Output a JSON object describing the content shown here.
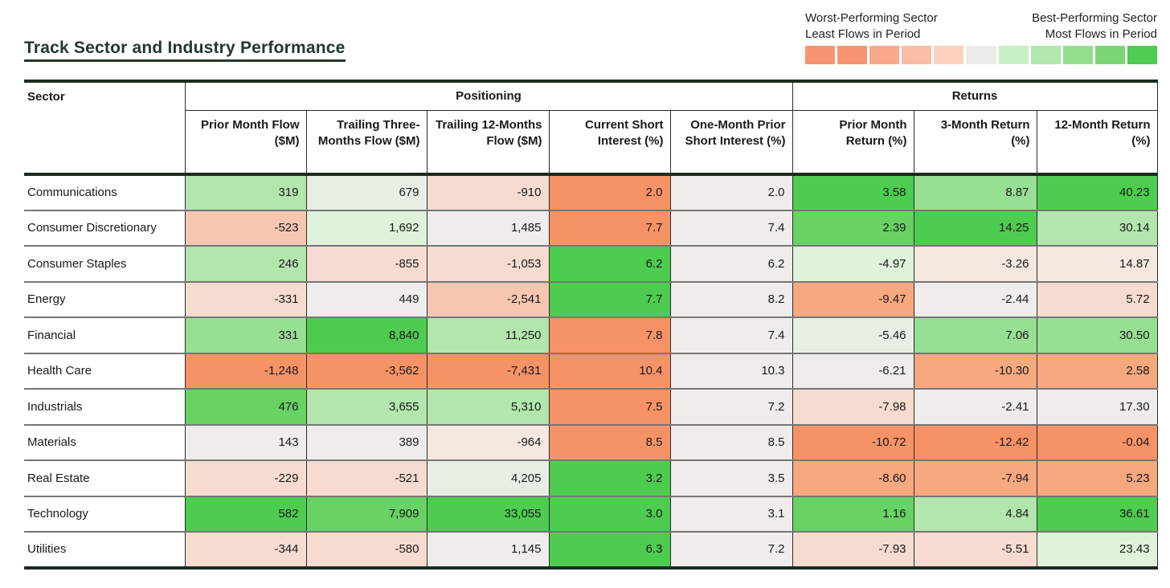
{
  "title": "Track Sector and Industry Performance",
  "legend": {
    "worst_line1": "Worst-Performing Sector",
    "worst_line2": "Least Flows in Period",
    "best_line1": "Best-Performing Sector",
    "best_line2": "Most Flows in Period",
    "swatches": [
      "#f79570",
      "#f79570",
      "#f8a98b",
      "#f9bca5",
      "#fad1bf",
      "#ebebea",
      "#c9efc5",
      "#b2e7ad",
      "#92de8d",
      "#7ad673",
      "#4fcc51"
    ]
  },
  "table": {
    "sector_header": "Sector",
    "groups": [
      {
        "label": "Positioning",
        "span": 5
      },
      {
        "label": "Returns",
        "span": 3
      }
    ],
    "columns": [
      "Prior Month Flow ($M)",
      "Trailing Three-Months Flow ($M)",
      "Trailing 12-Months Flow ($M)",
      "Current Short Interest (%)",
      "One-Month Prior Short Interest (%)",
      "Prior Month Return (%)",
      "3-Month Return (%)",
      "12-Month Return (%)"
    ],
    "palette": {
      "G5": "#4ecc50",
      "G4": "#68d265",
      "G3": "#97df92",
      "G2": "#b2e6ac",
      "G1": "#dff2da",
      "G0": "#e7efe4",
      "N": "#eeedec",
      "R1": "#f6e7e1",
      "R2": "#f5dbd0",
      "R3": "#f6c6b0",
      "R4": "#f6a87f",
      "R5": "#f69366"
    },
    "rows": [
      {
        "sector": "Communications",
        "cells": [
          {
            "v": "319",
            "c": "G2"
          },
          {
            "v": "679",
            "c": "G0"
          },
          {
            "v": "-910",
            "c": "R2"
          },
          {
            "v": "2.0",
            "c": "R5"
          },
          {
            "v": "2.0",
            "c": "N"
          },
          {
            "v": "3.58",
            "c": "G5"
          },
          {
            "v": "8.87",
            "c": "G3"
          },
          {
            "v": "40.23",
            "c": "G5"
          }
        ]
      },
      {
        "sector": "Consumer Discretionary",
        "cells": [
          {
            "v": "-523",
            "c": "R3"
          },
          {
            "v": "1,692",
            "c": "G1"
          },
          {
            "v": "1,485",
            "c": "N"
          },
          {
            "v": "7.7",
            "c": "R5"
          },
          {
            "v": "7.4",
            "c": "N"
          },
          {
            "v": "2.39",
            "c": "G4"
          },
          {
            "v": "14.25",
            "c": "G5"
          },
          {
            "v": "30.14",
            "c": "G2"
          }
        ]
      },
      {
        "sector": "Consumer Staples",
        "cells": [
          {
            "v": "246",
            "c": "G2"
          },
          {
            "v": "-855",
            "c": "R2"
          },
          {
            "v": "-1,053",
            "c": "R2"
          },
          {
            "v": "6.2",
            "c": "G5"
          },
          {
            "v": "6.2",
            "c": "N"
          },
          {
            "v": "-4.97",
            "c": "G1"
          },
          {
            "v": "-3.26",
            "c": "R1"
          },
          {
            "v": "14.87",
            "c": "R1"
          }
        ]
      },
      {
        "sector": "Energy",
        "cells": [
          {
            "v": "-331",
            "c": "R2"
          },
          {
            "v": "449",
            "c": "N"
          },
          {
            "v": "-2,541",
            "c": "R3"
          },
          {
            "v": "7.7",
            "c": "G5"
          },
          {
            "v": "8.2",
            "c": "N"
          },
          {
            "v": "-9.47",
            "c": "R4"
          },
          {
            "v": "-2.44",
            "c": "N"
          },
          {
            "v": "5.72",
            "c": "R2"
          }
        ]
      },
      {
        "sector": "Financial",
        "cells": [
          {
            "v": "331",
            "c": "G3"
          },
          {
            "v": "8,840",
            "c": "G5"
          },
          {
            "v": "11,250",
            "c": "G2"
          },
          {
            "v": "7.8",
            "c": "R5"
          },
          {
            "v": "7.4",
            "c": "N"
          },
          {
            "v": "-5.46",
            "c": "G0"
          },
          {
            "v": "7.06",
            "c": "G3"
          },
          {
            "v": "30.50",
            "c": "G3"
          }
        ]
      },
      {
        "sector": "Health Care",
        "cells": [
          {
            "v": "-1,248",
            "c": "R5"
          },
          {
            "v": "-3,562",
            "c": "R5"
          },
          {
            "v": "-7,431",
            "c": "R5"
          },
          {
            "v": "10.4",
            "c": "R5"
          },
          {
            "v": "10.3",
            "c": "N"
          },
          {
            "v": "-6.21",
            "c": "N"
          },
          {
            "v": "-10.30",
            "c": "R4"
          },
          {
            "v": "2.58",
            "c": "R4"
          }
        ]
      },
      {
        "sector": "Industrials",
        "cells": [
          {
            "v": "476",
            "c": "G4"
          },
          {
            "v": "3,655",
            "c": "G2"
          },
          {
            "v": "5,310",
            "c": "G2"
          },
          {
            "v": "7.5",
            "c": "R5"
          },
          {
            "v": "7.2",
            "c": "N"
          },
          {
            "v": "-7.98",
            "c": "R2"
          },
          {
            "v": "-2.41",
            "c": "N"
          },
          {
            "v": "17.30",
            "c": "N"
          }
        ]
      },
      {
        "sector": "Materials",
        "cells": [
          {
            "v": "143",
            "c": "N"
          },
          {
            "v": "389",
            "c": "N"
          },
          {
            "v": "-964",
            "c": "R1"
          },
          {
            "v": "8.5",
            "c": "R5"
          },
          {
            "v": "8.5",
            "c": "N"
          },
          {
            "v": "-10.72",
            "c": "R5"
          },
          {
            "v": "-12.42",
            "c": "R5"
          },
          {
            "v": "-0.04",
            "c": "R5"
          }
        ]
      },
      {
        "sector": "Real Estate",
        "cells": [
          {
            "v": "-229",
            "c": "R2"
          },
          {
            "v": "-521",
            "c": "R2"
          },
          {
            "v": "4,205",
            "c": "G0"
          },
          {
            "v": "3.2",
            "c": "G5"
          },
          {
            "v": "3.5",
            "c": "N"
          },
          {
            "v": "-8.60",
            "c": "R4"
          },
          {
            "v": "-7.94",
            "c": "R4"
          },
          {
            "v": "5.23",
            "c": "R4"
          }
        ]
      },
      {
        "sector": "Technology",
        "cells": [
          {
            "v": "582",
            "c": "G5"
          },
          {
            "v": "7,909",
            "c": "G4"
          },
          {
            "v": "33,055",
            "c": "G5"
          },
          {
            "v": "3.0",
            "c": "G5"
          },
          {
            "v": "3.1",
            "c": "N"
          },
          {
            "v": "1.16",
            "c": "G4"
          },
          {
            "v": "4.84",
            "c": "G2"
          },
          {
            "v": "36.61",
            "c": "G5"
          }
        ]
      },
      {
        "sector": "Utilities",
        "cells": [
          {
            "v": "-344",
            "c": "R2"
          },
          {
            "v": "-580",
            "c": "R2"
          },
          {
            "v": "1,145",
            "c": "N"
          },
          {
            "v": "6.3",
            "c": "G5"
          },
          {
            "v": "7.2",
            "c": "N"
          },
          {
            "v": "-7.93",
            "c": "R2"
          },
          {
            "v": "-5.51",
            "c": "R2"
          },
          {
            "v": "23.43",
            "c": "G1"
          }
        ]
      }
    ]
  },
  "chart_data": {
    "type": "heatmap",
    "title": "Track Sector and Industry Performance",
    "column_groups": [
      {
        "label": "Positioning",
        "columns": [
          "Prior Month Flow ($M)",
          "Trailing Three-Months Flow ($M)",
          "Trailing 12-Months Flow ($M)",
          "Current Short Interest (%)",
          "One-Month Prior Short Interest (%)"
        ]
      },
      {
        "label": "Returns",
        "columns": [
          "Prior Month Return (%)",
          "3-Month Return (%)",
          "12-Month Return (%)"
        ]
      }
    ],
    "columns": [
      "Prior Month Flow ($M)",
      "Trailing Three-Months Flow ($M)",
      "Trailing 12-Months Flow ($M)",
      "Current Short Interest (%)",
      "One-Month Prior Short Interest (%)",
      "Prior Month Return (%)",
      "3-Month Return (%)",
      "12-Month Return (%)"
    ],
    "rows": [
      "Communications",
      "Consumer Discretionary",
      "Consumer Staples",
      "Energy",
      "Financial",
      "Health Care",
      "Industrials",
      "Materials",
      "Real Estate",
      "Technology",
      "Utilities"
    ],
    "values": [
      [
        319,
        679,
        -910,
        2.0,
        2.0,
        3.58,
        8.87,
        40.23
      ],
      [
        -523,
        1692,
        1485,
        7.7,
        7.4,
        2.39,
        14.25,
        30.14
      ],
      [
        246,
        -855,
        -1053,
        6.2,
        6.2,
        -4.97,
        -3.26,
        14.87
      ],
      [
        -331,
        449,
        -2541,
        7.7,
        8.2,
        -9.47,
        -2.44,
        5.72
      ],
      [
        331,
        8840,
        11250,
        7.8,
        7.4,
        -5.46,
        7.06,
        30.5
      ],
      [
        -1248,
        -3562,
        -7431,
        10.4,
        10.3,
        -6.21,
        -10.3,
        2.58
      ],
      [
        476,
        3655,
        5310,
        7.5,
        7.2,
        -7.98,
        -2.41,
        17.3
      ],
      [
        143,
        389,
        -964,
        8.5,
        8.5,
        -10.72,
        -12.42,
        -0.04
      ],
      [
        -229,
        -521,
        4205,
        3.2,
        3.5,
        -8.6,
        -7.94,
        5.23
      ],
      [
        582,
        7909,
        33055,
        3.0,
        3.1,
        1.16,
        4.84,
        36.61
      ],
      [
        -344,
        -580,
        1145,
        6.3,
        7.2,
        -7.93,
        -5.51,
        23.43
      ]
    ],
    "legend": {
      "low_label": "Worst-Performing Sector / Least Flows in Period",
      "high_label": "Best-Performing Sector / Most Flows in Period",
      "colorscale": [
        "#f79570",
        "#ebebea",
        "#4fcc51"
      ]
    },
    "layout_hints": {
      "grid": true,
      "legend_position": "top-right",
      "color_low": "orange",
      "color_mid": "gray",
      "color_high": "green"
    }
  }
}
